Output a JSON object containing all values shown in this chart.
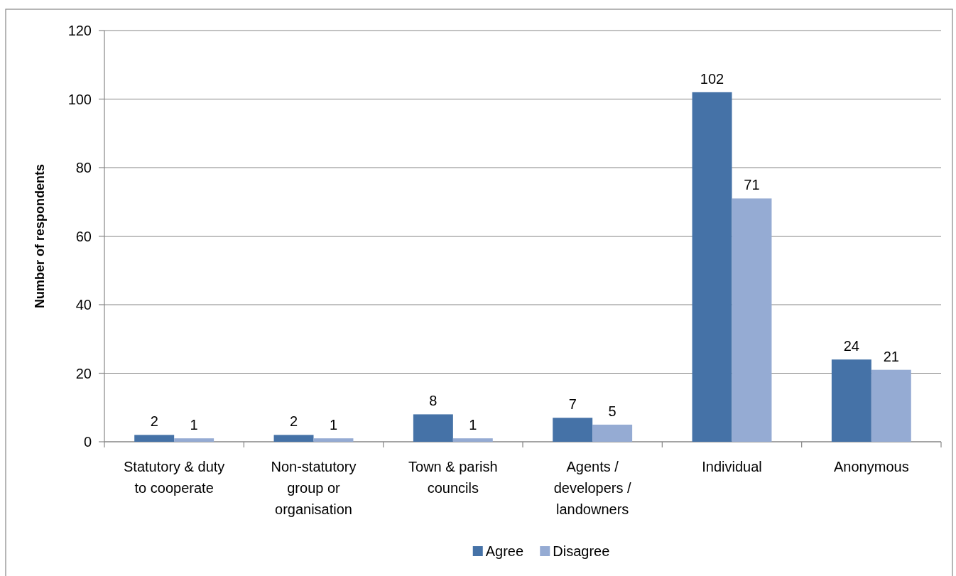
{
  "chart_data": {
    "type": "bar",
    "categories": [
      "Statutory & duty to cooperate",
      "Non-statutory group or organisation",
      "Town & parish councils",
      "Agents / developers / landowners",
      "Individual",
      "Anonymous"
    ],
    "series": [
      {
        "name": "Agree",
        "color": "#4572a7",
        "values": [
          2,
          2,
          8,
          7,
          102,
          24
        ]
      },
      {
        "name": "Disagree",
        "color": "#95abd3",
        "values": [
          1,
          1,
          1,
          5,
          71,
          21
        ]
      }
    ],
    "ylabel": "Number of respondents",
    "ylim": [
      0,
      120
    ],
    "yticks": [
      0,
      20,
      40,
      60,
      80,
      100,
      120
    ],
    "grid": "y",
    "legend": "bottom",
    "data_labels": true
  }
}
